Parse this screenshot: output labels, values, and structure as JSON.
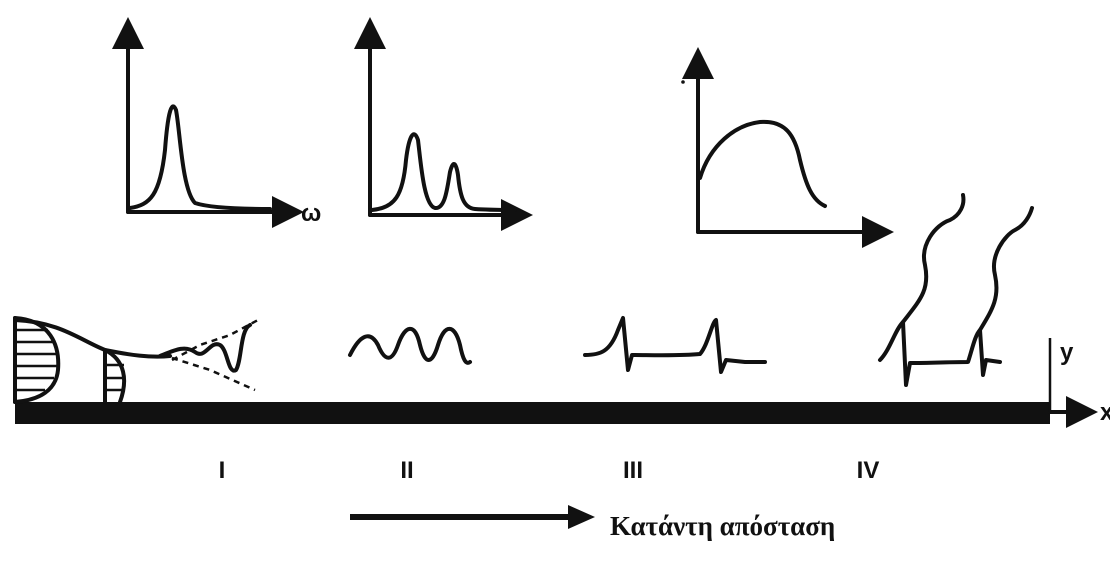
{
  "axis_labels": {
    "omega": "ω",
    "y": "y",
    "x": "x"
  },
  "stages": [
    "I",
    "II",
    "III",
    "IV"
  ],
  "caption": "Κατάντη απόσταση"
}
